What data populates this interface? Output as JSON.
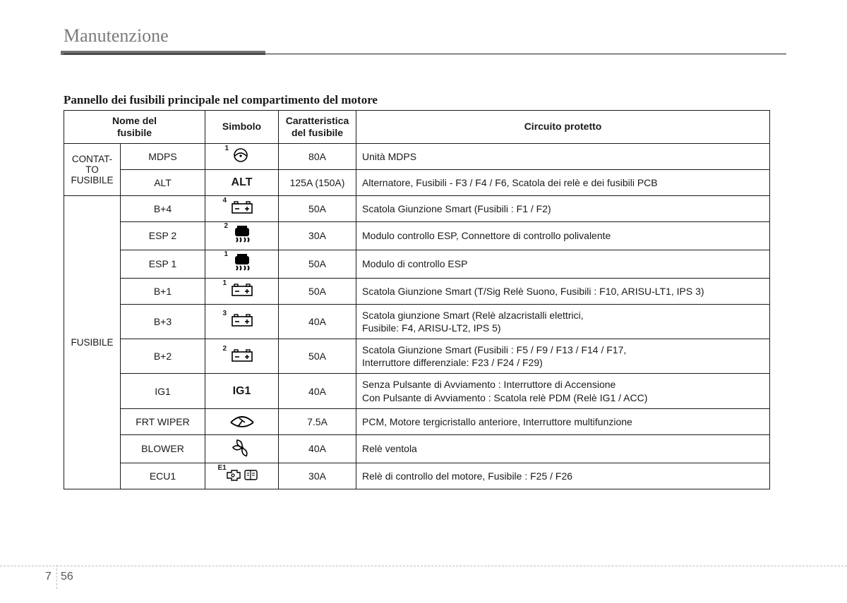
{
  "page": {
    "section_title": "Manutenzione",
    "table_title": "Pannello dei fusibili principale nel compartimento del motore",
    "chapter_num": "7",
    "page_num": "56"
  },
  "headers": {
    "name": "Nome del\nfusibile",
    "symbol": "Simbolo",
    "rating": "Caratteristica\ndel fusibile",
    "circuit": "Circuito protetto"
  },
  "groups": [
    {
      "label": "CONTAT-\nTO\nFUSIBILE",
      "rowspan": 2
    },
    {
      "label": "FUSIBILE",
      "rowspan": 10
    }
  ],
  "rows": [
    {
      "name": "MDPS",
      "symbol_icon": "steer",
      "symbol_sup": "1",
      "rating": "80A",
      "circuit": "Unità MDPS"
    },
    {
      "name": "ALT",
      "symbol_text": "ALT",
      "rating": "125A (150A)",
      "circuit": "Alternatore, Fusibili - F3 / F4 / F6, Scatola dei relè e dei fusibili PCB"
    },
    {
      "name": "B+4",
      "symbol_icon": "battery",
      "symbol_sup": "4",
      "rating": "50A",
      "circuit": "Scatola Giunzione Smart (Fusibili : F1 / F2)"
    },
    {
      "name": "ESP 2",
      "symbol_icon": "esp",
      "symbol_sup": "2",
      "rating": "30A",
      "circuit": "Modulo controllo ESP, Connettore di controllo polivalente"
    },
    {
      "name": "ESP 1",
      "symbol_icon": "esp",
      "symbol_sup": "1",
      "rating": "50A",
      "circuit": "Modulo di controllo ESP"
    },
    {
      "name": "B+1",
      "symbol_icon": "battery",
      "symbol_sup": "1",
      "rating": "50A",
      "circuit": "Scatola Giunzione Smart (T/Sig Relè Suono, Fusibili : F10, ARISU-LT1, IPS 3)"
    },
    {
      "name": "B+3",
      "symbol_icon": "battery",
      "symbol_sup": "3",
      "rating": "40A",
      "circuit": "Scatola giunzione Smart (Relè alzacristalli elettrici,\nFusibile: F4, ARISU-LT2, IPS 5)"
    },
    {
      "name": "B+2",
      "symbol_icon": "battery",
      "symbol_sup": "2",
      "rating": "50A",
      "circuit": "Scatola Giunzione Smart (Fusibili : F5 / F9 / F13 / F14 / F17,\nInterruttore differenziale: F23 / F24 / F29)"
    },
    {
      "name": "IG1",
      "symbol_text": "IG1",
      "rating": "40A",
      "circuit": "Senza Pulsante di Avviamento : Interruttore di Accensione\nCon Pulsante di Avviamento : Scatola relè PDM (Relè IG1 / ACC)"
    },
    {
      "name": "FRT WIPER",
      "symbol_icon": "wiper",
      "rating": "7.5A",
      "circuit": "PCM, Motore tergicristallo anteriore, Interruttore multifunzione"
    },
    {
      "name": "BLOWER",
      "symbol_icon": "fan",
      "rating": "40A",
      "circuit": "Relè ventola"
    },
    {
      "name": "ECU1",
      "symbol_icon": "ecu",
      "symbol_sup": "E1",
      "rating": "30A",
      "circuit": "Relè di controllo del motore, Fusibile : F25 / F26"
    }
  ],
  "icons": {
    "steer": "<svg width='28' height='22' viewBox='0 0 28 22'><circle cx='12' cy='11' r='9' fill='none' stroke='#000' stroke-width='1.6'/><path d='M4 12 Q12 4 20 12' fill='none' stroke='#000' stroke-width='1.6'/><circle cx='12' cy='12' r='1.6' fill='#000'/></svg>",
    "battery": "<svg width='34' height='22' viewBox='0 0 34 22'><rect x='3' y='6' width='28' height='13' fill='none' stroke='#000' stroke-width='1.6'/><rect x='6' y='3' width='5' height='3' fill='none' stroke='#000' stroke-width='1.4'/><rect x='23' y='3' width='5' height='3' fill='none' stroke='#000' stroke-width='1.4'/><line x1='7' y1='13' x2='13' y2='13' stroke='#000' stroke-width='1.6'/><line x1='21' y1='13' x2='27' y2='13' stroke='#000' stroke-width='1.6'/><line x1='24' y1='10' x2='24' y2='16' stroke='#000' stroke-width='1.6'/></svg>",
    "esp": "<svg width='30' height='28' viewBox='0 0 30 28'><path d='M8 4 h14 a3 3 0 0 1 3 3 v6 a3 3 0 0 1 -3 3 h-14 a3 3 0 0 1 -3 -3 v-6 a3 3 0 0 1 3 -3 z' fill='#000'/><rect x='8' y='1' width='14' height='3' fill='#000'/><path d='M7 18 q3 3 0 6' fill='none' stroke='#000' stroke-width='2'/><path d='M12 18 q3 3 0 6' fill='none' stroke='#000' stroke-width='2'/><path d='M18 18 q3 3 0 6' fill='none' stroke='#000' stroke-width='2'/><path d='M23 18 q3 3 0 6' fill='none' stroke='#000' stroke-width='2'/></svg>",
    "wiper": "<svg width='36' height='22' viewBox='0 0 36 22'><path d='M2 14 Q18 -2 34 14' fill='none' stroke='#000' stroke-width='1.8'/><path d='M2 14 Q18 26 34 14' fill='none' stroke='#000' stroke-width='1.8'/><line x1='18' y1='12' x2='12' y2='20' stroke='#000' stroke-width='1.8'/><line x1='14' y1='8' x2='22' y2='14' stroke='#000' stroke-width='1.6'/></svg>",
    "fan": "<svg width='30' height='28' viewBox='0 0 30 28'><circle cx='15' cy='14' r='2' fill='#000'/><path d='M15 14 Q6 10 8 3 Q16 4 15 14' fill='none' stroke='#000' stroke-width='1.6'/><path d='M15 14 Q24 10 22 3 Q14 4 15 14' fill='none' stroke='#000' stroke-width='1.6' transform='rotate(120 15 14)'/><path d='M15 14 Q24 10 22 3 Q14 4 15 14' fill='none' stroke='#000' stroke-width='1.6' transform='rotate(240 15 14)'/></svg>",
    "ecu": "<svg width='48' height='22' viewBox='0 0 48 22'><path d='M3 8 h6 v-3 h8 v3 h4 v8 h-4 v3 h-8 v-3 h-6 z' fill='none' stroke='#000' stroke-width='1.4'/><circle cx='11' cy='12' r='2' fill='none' stroke='#000' stroke-width='1.2'/><rect x='28' y='5' width='17' height='13' rx='2' fill='none' stroke='#000' stroke-width='1.4'/><line x1='36' y1='5' x2='36' y2='18' stroke='#000' stroke-width='1.2'/><line x1='31' y1='9' x2='34' y2='9' stroke='#000' stroke-width='1'/><line x1='31' y1='12' x2='34' y2='12' stroke='#000' stroke-width='1'/><line x1='38' y1='9' x2='42' y2='9' stroke='#000' stroke-width='1'/><line x1='38' y1='12' x2='42' y2='12' stroke='#000' stroke-width='1'/></svg>"
  }
}
